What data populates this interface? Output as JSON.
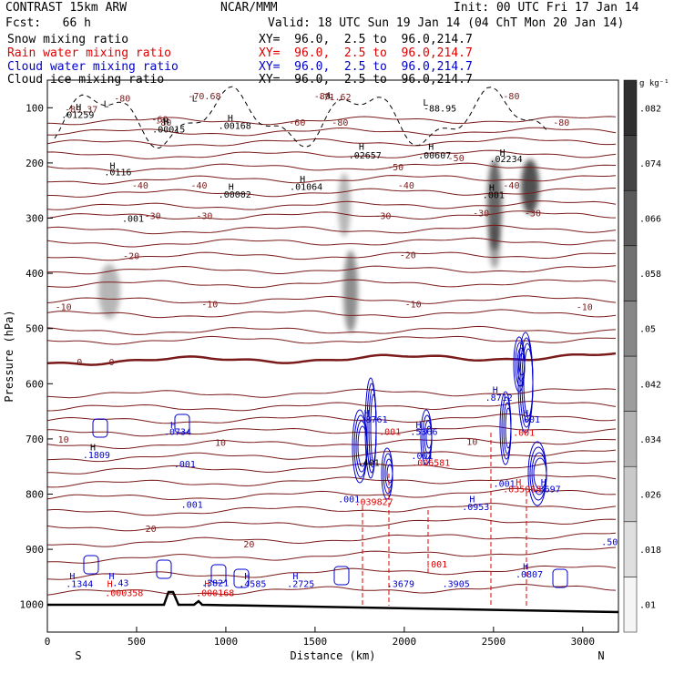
{
  "header": {
    "model": "CONTRAST 15km ARW",
    "forecast": "Fcst:   66 h",
    "org": "NCAR/MMM",
    "init": "Init: 00 UTC Fri 17 Jan 14",
    "valid": "Valid: 18 UTC Sun 19 Jan 14 (04 ChT Mon 20 Jan 14)",
    "fields": [
      {
        "name": "Snow mixing ratio",
        "xy": "XY=  96.0,  2.5 to  96.0,214.7",
        "color": "#000000"
      },
      {
        "name": "Rain water mixing ratio",
        "xy": "XY=  96.0,  2.5 to  96.0,214.7",
        "color": "#e00000"
      },
      {
        "name": "Cloud water mixing ratio",
        "xy": "XY=  96.0,  2.5 to  96.0,214.7",
        "color": "#0000cc"
      },
      {
        "name": "Cloud ice mixing ratio",
        "xy": "XY=  96.0,  2.5 to  96.0,214.7",
        "color": "#000000"
      }
    ]
  },
  "chart_data": {
    "type": "cross-section",
    "xlabel": "Distance (km)",
    "ylabel": "Pressure (hPa)",
    "xlim": [
      0,
      3200
    ],
    "ylim": [
      1050,
      50
    ],
    "xticks": [
      0,
      500,
      1000,
      1500,
      2000,
      2500,
      3000
    ],
    "yticks": [
      100,
      200,
      300,
      400,
      500,
      600,
      700,
      800,
      900,
      1000
    ],
    "endpoints": {
      "left": "S",
      "right": "N"
    },
    "colorbar": {
      "unit": "g kg⁻¹",
      "levels": [
        0.01,
        0.018,
        0.026,
        0.034,
        0.042,
        0.05,
        0.058,
        0.066,
        0.074,
        0.082
      ],
      "labels": [
        ".01",
        ".018",
        ".026",
        ".034",
        ".042",
        ".05",
        ".058",
        ".066",
        ".074",
        ".082"
      ]
    },
    "temperature_labels": [
      {
        "text": "-80",
        "x": 420,
        "p": 82
      },
      {
        "text": "-80",
        "x": 650,
        "p": 126
      },
      {
        "text": "-80",
        "x": 1540,
        "p": 78
      },
      {
        "text": "-80",
        "x": 1640,
        "p": 126
      },
      {
        "text": "-80",
        "x": 2600,
        "p": 78
      },
      {
        "text": "-80",
        "x": 2880,
        "p": 126
      },
      {
        "text": "-70.68",
        "x": 880,
        "p": 78
      },
      {
        "text": "-71.62",
        "x": 1610,
        "p": 80
      },
      {
        "text": "-89.37",
        "x": 190,
        "p": 102
      },
      {
        "text": "-60",
        "x": 630,
        "p": 120
      },
      {
        "text": "-60",
        "x": 1400,
        "p": 126
      },
      {
        "text": "-50",
        "x": 1950,
        "p": 207
      },
      {
        "text": "-50",
        "x": 2290,
        "p": 190
      },
      {
        "text": "-40",
        "x": 520,
        "p": 240
      },
      {
        "text": "-40",
        "x": 850,
        "p": 240
      },
      {
        "text": "-40",
        "x": 2010,
        "p": 240
      },
      {
        "text": "-40",
        "x": 2600,
        "p": 240
      },
      {
        "text": "-30",
        "x": 590,
        "p": 295
      },
      {
        "text": "-30",
        "x": 880,
        "p": 295
      },
      {
        "text": "-30",
        "x": 1880,
        "p": 295
      },
      {
        "text": "-30",
        "x": 2430,
        "p": 290
      },
      {
        "text": "-30",
        "x": 2720,
        "p": 290
      },
      {
        "text": "-20",
        "x": 470,
        "p": 368
      },
      {
        "text": "-20",
        "x": 2020,
        "p": 366
      },
      {
        "text": "-10",
        "x": 90,
        "p": 460
      },
      {
        "text": "-10",
        "x": 910,
        "p": 455
      },
      {
        "text": "-10",
        "x": 2050,
        "p": 455
      },
      {
        "text": "-10",
        "x": 3010,
        "p": 460
      },
      {
        "text": "0",
        "x": 180,
        "p": 560
      },
      {
        "text": "0",
        "x": 360,
        "p": 560
      },
      {
        "text": "10",
        "x": 90,
        "p": 700
      },
      {
        "text": "10",
        "x": 970,
        "p": 706
      },
      {
        "text": "10",
        "x": 2380,
        "p": 704
      },
      {
        "text": "20",
        "x": 580,
        "p": 862
      },
      {
        "text": "20",
        "x": 1130,
        "p": 890
      }
    ],
    "maxima_labels": [
      {
        "text": "H",
        "x": 175,
        "p": 98,
        "color": "#000000"
      },
      {
        "text": ".01259",
        "x": 170,
        "p": 112,
        "color": "#000000"
      },
      {
        "text": "L",
        "x": 330,
        "p": 92,
        "color": "#000000"
      },
      {
        "text": "L",
        "x": 825,
        "p": 82,
        "color": "#000000"
      },
      {
        "text": "L",
        "x": 1585,
        "p": 76,
        "color": "#000000"
      },
      {
        "text": "L",
        "x": 2120,
        "p": 90,
        "color": "#000000"
      },
      {
        "text": "-88.95",
        "x": 2200,
        "p": 100,
        "color": "#000000"
      },
      {
        "text": "H",
        "x": 665,
        "p": 124,
        "color": "#000000"
      },
      {
        "text": ".00015",
        "x": 680,
        "p": 138,
        "color": "#000000"
      },
      {
        "text": "H",
        "x": 1025,
        "p": 118,
        "color": "#000000"
      },
      {
        "text": ".00168",
        "x": 1050,
        "p": 132,
        "color": "#000000"
      },
      {
        "text": "H",
        "x": 1760,
        "p": 170,
        "color": "#000000"
      },
      {
        "text": ".02657",
        "x": 1780,
        "p": 185,
        "color": "#000000"
      },
      {
        "text": "H",
        "x": 2150,
        "p": 170,
        "color": "#000000"
      },
      {
        "text": ".00607",
        "x": 2170,
        "p": 185,
        "color": "#000000"
      },
      {
        "text": "H",
        "x": 2550,
        "p": 180,
        "color": "#000000"
      },
      {
        "text": ".02234",
        "x": 2570,
        "p": 192,
        "color": "#000000"
      },
      {
        "text": "H",
        "x": 365,
        "p": 204,
        "color": "#000000"
      },
      {
        "text": ".0116",
        "x": 395,
        "p": 216,
        "color": "#000000"
      },
      {
        "text": "H",
        "x": 1430,
        "p": 228,
        "color": "#000000"
      },
      {
        "text": ".01064",
        "x": 1450,
        "p": 242,
        "color": "#000000"
      },
      {
        "text": "H",
        "x": 1030,
        "p": 242,
        "color": "#000000"
      },
      {
        "text": ".00002",
        "x": 1050,
        "p": 256,
        "color": "#000000"
      },
      {
        "text": "H",
        "x": 2490,
        "p": 244,
        "color": "#000000"
      },
      {
        "text": ".001",
        "x": 2500,
        "p": 257,
        "color": "#000000"
      },
      {
        "text": ".001",
        "x": 480,
        "p": 300,
        "color": "#000000"
      },
      {
        "text": "H",
        "x": 2510,
        "p": 610,
        "color": "#0000cc"
      },
      {
        "text": ".8712",
        "x": 2530,
        "p": 624,
        "color": "#0000cc"
      },
      {
        "text": "H",
        "x": 1790,
        "p": 652,
        "color": "#0000cc"
      },
      {
        "text": ".8761",
        "x": 1830,
        "p": 664,
        "color": "#0000cc"
      },
      {
        "text": "H",
        "x": 2680,
        "p": 652,
        "color": "#0000cc"
      },
      {
        "text": ".001",
        "x": 2700,
        "p": 664,
        "color": "#0000cc"
      },
      {
        "text": "H",
        "x": 705,
        "p": 674,
        "color": "#0000cc"
      },
      {
        "text": ".0734",
        "x": 730,
        "p": 686,
        "color": "#0000cc"
      },
      {
        "text": "H",
        "x": 2080,
        "p": 674,
        "color": "#0000cc"
      },
      {
        "text": ".5366",
        "x": 2110,
        "p": 686,
        "color": "#0000cc"
      },
      {
        "text": ".001",
        "x": 1920,
        "p": 686,
        "color": "#e00000"
      },
      {
        "text": ".001",
        "x": 2670,
        "p": 688,
        "color": "#e00000"
      },
      {
        "text": "H",
        "x": 255,
        "p": 714,
        "color": "#000000"
      },
      {
        "text": ".1809",
        "x": 275,
        "p": 728,
        "color": "#0000cc"
      },
      {
        "text": ".001",
        "x": 770,
        "p": 745,
        "color": "#0000cc"
      },
      {
        "text": ".001",
        "x": 2100,
        "p": 730,
        "color": "#0000cc"
      },
      {
        "text": ".006581",
        "x": 2150,
        "p": 742,
        "color": "#e00000"
      },
      {
        "text": ".401",
        "x": 1800,
        "p": 742,
        "color": "#000000"
      },
      {
        "text": "H",
        "x": 2640,
        "p": 778,
        "color": "#e00000"
      },
      {
        "text": ".035068",
        "x": 2660,
        "p": 790,
        "color": "#e00000"
      },
      {
        "text": ".001",
        "x": 2560,
        "p": 780,
        "color": "#0000cc"
      },
      {
        "text": "H",
        "x": 2780,
        "p": 778,
        "color": "#0000cc"
      },
      {
        "text": ".3697",
        "x": 2800,
        "p": 790,
        "color": "#0000cc"
      },
      {
        "text": ".001",
        "x": 1690,
        "p": 808,
        "color": "#0000cc"
      },
      {
        "text": ".039827",
        "x": 1830,
        "p": 813,
        "color": "#e00000"
      },
      {
        "text": "H",
        "x": 2380,
        "p": 808,
        "color": "#0000cc"
      },
      {
        "text": ".0953",
        "x": 2400,
        "p": 822,
        "color": "#0000cc"
      },
      {
        "text": ".001",
        "x": 810,
        "p": 818,
        "color": "#0000cc"
      },
      {
        "text": ".50",
        "x": 3150,
        "p": 886,
        "color": "#0000cc"
      },
      {
        "text": ".001",
        "x": 2180,
        "p": 926,
        "color": "#e00000"
      },
      {
        "text": "H",
        "x": 140,
        "p": 948,
        "color": "#0000cc"
      },
      {
        "text": ".1344",
        "x": 180,
        "p": 962,
        "color": "#0000cc"
      },
      {
        "text": "H",
        "x": 360,
        "p": 948,
        "color": "#0000cc"
      },
      {
        "text": "H",
        "x": 350,
        "p": 962,
        "color": "#e00000"
      },
      {
        "text": ".43",
        "x": 410,
        "p": 960,
        "color": "#0000cc"
      },
      {
        "text": ".000358",
        "x": 430,
        "p": 978,
        "color": "#e00000"
      },
      {
        "text": "H",
        "x": 895,
        "p": 962,
        "color": "#e00000"
      },
      {
        "text": ".3821",
        "x": 940,
        "p": 960,
        "color": "#0000cc"
      },
      {
        "text": ".000168",
        "x": 940,
        "p": 978,
        "color": "#e00000"
      },
      {
        "text": "H",
        "x": 1120,
        "p": 948,
        "color": "#0000cc"
      },
      {
        "text": ".4585",
        "x": 1150,
        "p": 962,
        "color": "#0000cc"
      },
      {
        "text": "H",
        "x": 1390,
        "p": 948,
        "color": "#0000cc"
      },
      {
        "text": ".2725",
        "x": 1420,
        "p": 962,
        "color": "#0000cc"
      },
      {
        "text": ".3679",
        "x": 1980,
        "p": 962,
        "color": "#0000cc"
      },
      {
        "text": ".3905",
        "x": 2290,
        "p": 962,
        "color": "#0000cc"
      },
      {
        "text": "H",
        "x": 2680,
        "p": 930,
        "color": "#0000cc"
      },
      {
        "text": ".0807",
        "x": 2700,
        "p": 944,
        "color": "#0000cc"
      }
    ]
  }
}
